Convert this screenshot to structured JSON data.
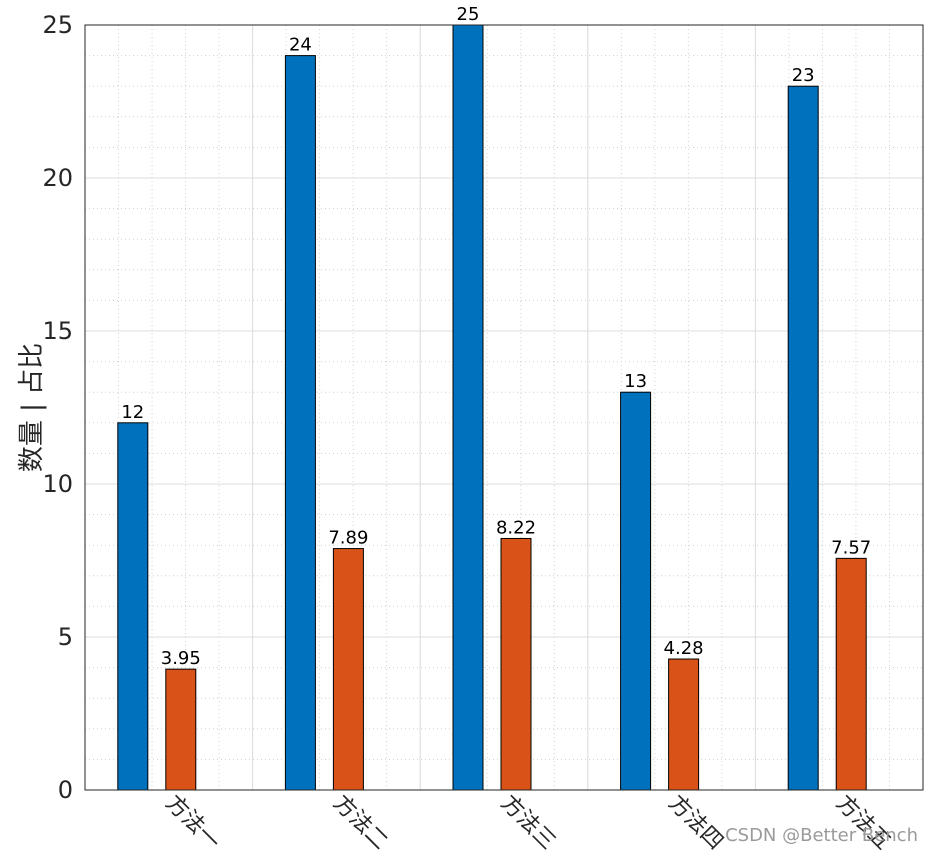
{
  "chart_data": {
    "type": "bar",
    "categories": [
      "方法一",
      "方法二",
      "方法三",
      "方法四",
      "方法五"
    ],
    "series": [
      {
        "values": [
          12,
          24,
          25,
          13,
          23
        ],
        "color": "#0072BD",
        "labels": [
          "12",
          "24",
          "25",
          "13",
          "23"
        ]
      },
      {
        "values": [
          3.95,
          7.89,
          8.22,
          4.28,
          7.57
        ],
        "color": "#D95319",
        "labels": [
          "3.95",
          "7.89",
          "8.22",
          "4.28",
          "7.57"
        ]
      }
    ],
    "title": "",
    "xlabel": "",
    "ylabel": "数量 | 占比",
    "ylim": [
      0,
      25
    ],
    "yticks": [
      "0",
      "5",
      "10",
      "15",
      "20",
      "25"
    ],
    "grid": true,
    "minor_grid": true
  },
  "watermark": "CSDN @Better Bench"
}
